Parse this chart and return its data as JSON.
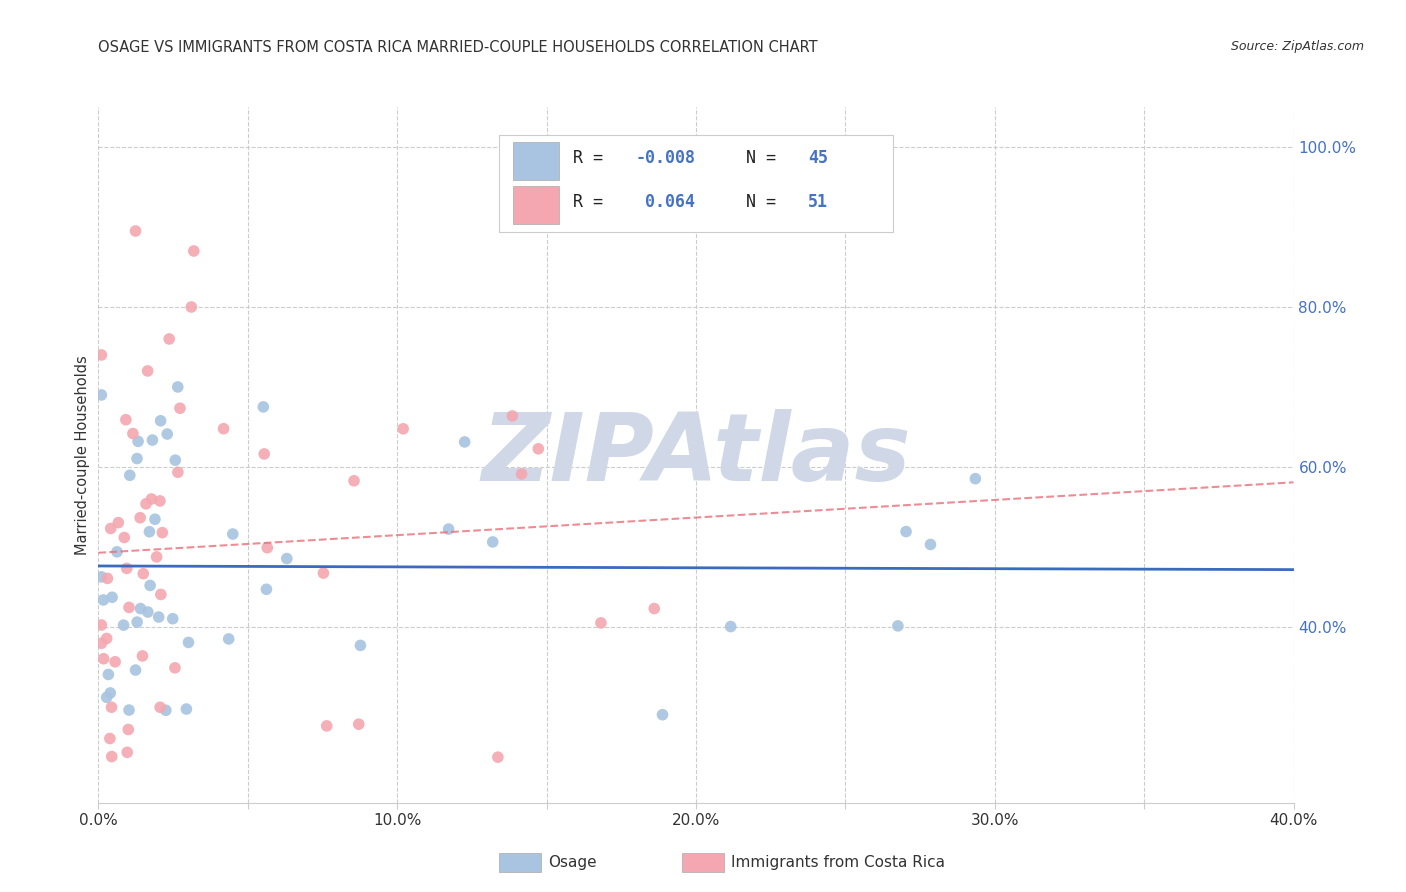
{
  "title": "OSAGE VS IMMIGRANTS FROM COSTA RICA MARRIED-COUPLE HOUSEHOLDS CORRELATION CHART",
  "source": "Source: ZipAtlas.com",
  "ylabel": "Married-couple Households",
  "xlim": [
    0.0,
    0.4
  ],
  "ylim": [
    0.18,
    1.05
  ],
  "xtick_vals": [
    0.0,
    0.05,
    0.1,
    0.15,
    0.2,
    0.25,
    0.3,
    0.35,
    0.4
  ],
  "xticklabels": [
    "0.0%",
    "",
    "10.0%",
    "",
    "20.0%",
    "",
    "30.0%",
    "",
    "40.0%"
  ],
  "yticks_right": [
    0.4,
    0.6,
    0.8,
    1.0
  ],
  "yticklabels_right": [
    "40.0%",
    "60.0%",
    "80.0%",
    "100.0%"
  ],
  "color_osage": "#a8c4e0",
  "color_costa_rica": "#f4a7b0",
  "color_trend_osage": "#3a6bbf",
  "color_trend_costa_rica": "#e8707a",
  "watermark": "ZIPAtlas",
  "watermark_color": "#d0d8e8",
  "background_color": "#ffffff",
  "grid_color": "#cccccc",
  "title_color": "#333333",
  "label_color": "#333333",
  "right_tick_color": "#4472c4",
  "r1": "-0.008",
  "n1": "45",
  "r2": "0.064",
  "n2": "51"
}
